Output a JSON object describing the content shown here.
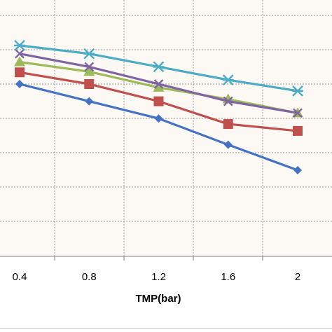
{
  "chart_data": {
    "type": "line",
    "title": "",
    "xlabel": "TMP(bar)",
    "ylabel": "",
    "x": [
      0.4,
      0.8,
      1.2,
      1.6,
      2
    ],
    "x_tick_labels": [
      "0.4",
      "0.8",
      "1.2",
      "1.6",
      "2"
    ],
    "xlim": [
      0.4,
      2
    ],
    "grid": "dotted",
    "legend": "none",
    "series": [
      {
        "values": [
          0.8,
          0.55,
          0.3,
          -0.08,
          -0.45
        ],
        "color": "#4472C4",
        "marker": "diamond"
      },
      {
        "values": [
          0.97,
          0.8,
          0.55,
          0.22,
          0.12
        ],
        "color": "#C0504D",
        "marker": "square"
      },
      {
        "values": [
          1.12,
          0.98,
          0.75,
          0.58,
          0.38
        ],
        "color": "#9BBB59",
        "marker": "triangle"
      },
      {
        "values": [
          1.24,
          1.05,
          0.8,
          0.55,
          0.38
        ],
        "color": "#8064A2",
        "marker": "x"
      },
      {
        "values": [
          1.36,
          1.24,
          1.05,
          0.86,
          0.7
        ],
        "color": "#4BACC6",
        "marker": "star"
      }
    ]
  }
}
